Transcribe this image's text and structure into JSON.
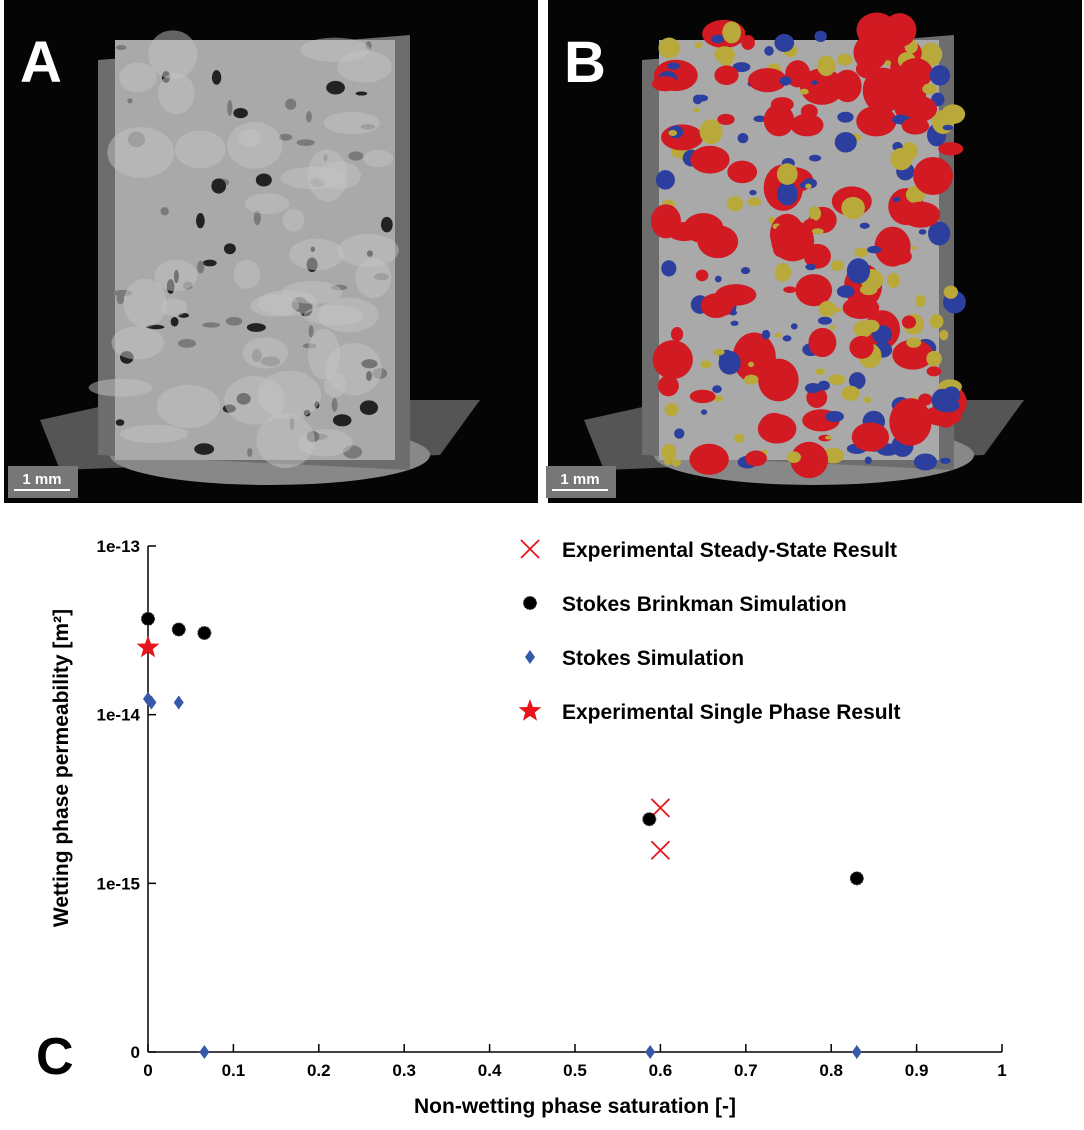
{
  "panels": [
    {
      "label": "A",
      "scale_bar": "1 mm"
    },
    {
      "label": "B",
      "scale_bar": "1 mm"
    }
  ],
  "chart_data": {
    "type": "scatter",
    "panel_label": "C",
    "xlabel": "Non-wetting phase saturation [-]",
    "ylabel": "Wetting phase permeability [m²]",
    "xlim": [
      0,
      1
    ],
    "xticks": [
      0,
      0.1,
      0.2,
      0.3,
      0.4,
      0.5,
      0.6,
      0.7,
      0.8,
      0.9,
      1
    ],
    "ylim": [
      0,
      1e-13
    ],
    "yticks": [
      0,
      1e-15,
      1e-14,
      1e-13
    ],
    "yscale": "log",
    "legend": "upper right",
    "series": [
      {
        "name": "Experimental Steady-State Result",
        "color": "#e8141b",
        "marker": "x",
        "x": [
          0.6,
          0.6
        ],
        "values": [
          2.8e-15,
          1.57e-15
        ]
      },
      {
        "name": "Stokes Brinkman Simulation",
        "color": "#000000",
        "marker": "asterisk",
        "x": [
          0.0,
          0.036,
          0.066,
          0.587,
          0.83
        ],
        "values": [
          3.7e-14,
          3.2e-14,
          3.05e-14,
          2.4e-15,
          1.07e-15
        ]
      },
      {
        "name": "Stokes Simulation",
        "color": "#3558a8",
        "marker": "diamond",
        "x": [
          0.0,
          0.004,
          0.036,
          0.066,
          0.588,
          0.83
        ],
        "values": [
          1.24e-14,
          1.18e-14,
          1.18e-14,
          0,
          0,
          0
        ]
      },
      {
        "name": "Experimental Single Phase Result",
        "color": "#e8141b",
        "marker": "star",
        "x": [
          0.0
        ],
        "values": [
          2.5e-14
        ]
      }
    ]
  }
}
